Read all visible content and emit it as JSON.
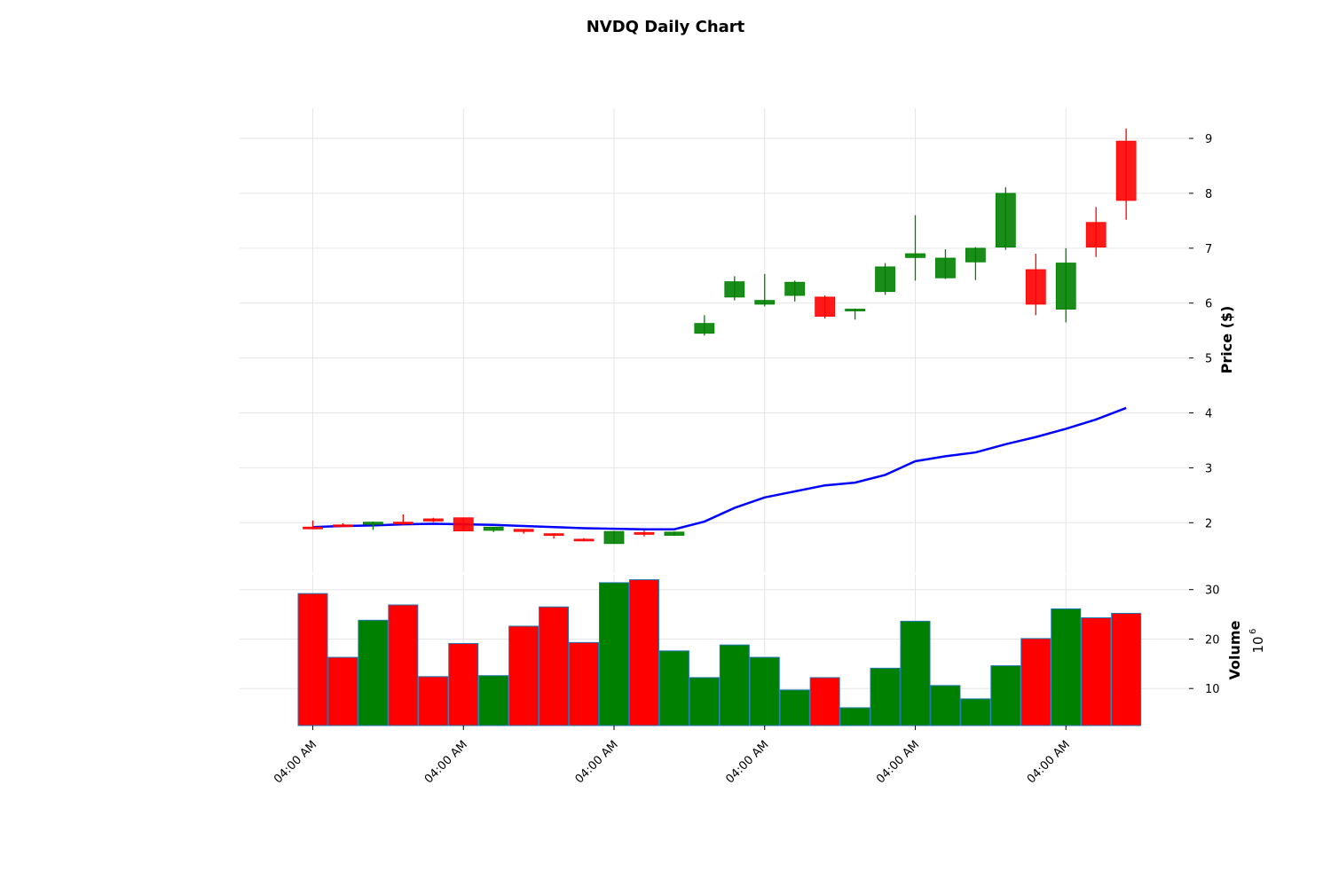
{
  "chart_data": {
    "type": "candlestick",
    "title": "NVDQ Daily Chart",
    "price_ylabel": "Price ($)",
    "volume_ylabel": "Volume",
    "volume_scale_label": "10",
    "volume_scale_exponent": "6",
    "price_ylim": [
      1.1,
      9.55
    ],
    "volume_ylim": [
      2.5,
      33
    ],
    "price_yticks": [
      2,
      3,
      4,
      5,
      6,
      7,
      8,
      9
    ],
    "volume_yticks": [
      10,
      20,
      30
    ],
    "xtick_labels": [
      "04:00 AM",
      "04:00 AM",
      "04:00 AM",
      "04:00 AM",
      "04:00 AM",
      "04:00 AM"
    ],
    "xtick_indices": [
      0,
      5,
      10,
      15,
      20,
      25
    ],
    "grid": true,
    "colors": {
      "up": "#008000",
      "down": "#ff0000",
      "ma": "#0000ff"
    },
    "candles": [
      {
        "open": 1.92,
        "high": 2.04,
        "low": 1.88,
        "close": 1.92,
        "volume": 29.2,
        "dir": "down"
      },
      {
        "open": 1.96,
        "high": 1.99,
        "low": 1.92,
        "close": 1.96,
        "volume": 16.3,
        "dir": "down"
      },
      {
        "open": 1.97,
        "high": 2.02,
        "low": 1.87,
        "close": 2.01,
        "volume": 23.8,
        "dir": "up"
      },
      {
        "open": 2.01,
        "high": 2.15,
        "low": 1.96,
        "close": 1.98,
        "volume": 26.9,
        "dir": "down"
      },
      {
        "open": 2.07,
        "high": 2.09,
        "low": 2.01,
        "close": 2.03,
        "volume": 12.4,
        "dir": "down"
      },
      {
        "open": 2.09,
        "high": 2.09,
        "low": 1.85,
        "close": 1.85,
        "volume": 19.1,
        "dir": "down"
      },
      {
        "open": 1.86,
        "high": 1.92,
        "low": 1.83,
        "close": 1.92,
        "volume": 12.6,
        "dir": "up"
      },
      {
        "open": 1.88,
        "high": 1.88,
        "low": 1.8,
        "close": 1.84,
        "volume": 22.6,
        "dir": "down"
      },
      {
        "open": 1.8,
        "high": 1.81,
        "low": 1.71,
        "close": 1.77,
        "volume": 26.5,
        "dir": "down"
      },
      {
        "open": 1.7,
        "high": 1.72,
        "low": 1.66,
        "close": 1.67,
        "volume": 19.3,
        "dir": "down"
      },
      {
        "open": 1.62,
        "high": 1.85,
        "low": 1.62,
        "close": 1.84,
        "volume": 31.4,
        "dir": "up"
      },
      {
        "open": 1.82,
        "high": 1.86,
        "low": 1.75,
        "close": 1.8,
        "volume": 32.0,
        "dir": "down"
      },
      {
        "open": 1.77,
        "high": 1.84,
        "low": 1.76,
        "close": 1.83,
        "volume": 17.6,
        "dir": "up"
      },
      {
        "open": 5.45,
        "high": 5.78,
        "low": 5.41,
        "close": 5.63,
        "volume": 12.2,
        "dir": "up"
      },
      {
        "open": 6.11,
        "high": 6.49,
        "low": 6.05,
        "close": 6.39,
        "volume": 18.8,
        "dir": "up"
      },
      {
        "open": 5.98,
        "high": 6.53,
        "low": 5.94,
        "close": 6.05,
        "volume": 16.3,
        "dir": "up"
      },
      {
        "open": 6.14,
        "high": 6.41,
        "low": 6.03,
        "close": 6.38,
        "volume": 9.7,
        "dir": "up"
      },
      {
        "open": 6.11,
        "high": 6.14,
        "low": 5.72,
        "close": 5.76,
        "volume": 12.2,
        "dir": "down"
      },
      {
        "open": 5.86,
        "high": 5.9,
        "low": 5.7,
        "close": 5.89,
        "volume": 6.1,
        "dir": "up"
      },
      {
        "open": 6.21,
        "high": 6.73,
        "low": 6.15,
        "close": 6.66,
        "volume": 14.1,
        "dir": "up"
      },
      {
        "open": 6.83,
        "high": 7.6,
        "low": 6.41,
        "close": 6.9,
        "volume": 23.6,
        "dir": "up"
      },
      {
        "open": 6.46,
        "high": 6.98,
        "low": 6.44,
        "close": 6.82,
        "volume": 10.6,
        "dir": "up"
      },
      {
        "open": 6.75,
        "high": 7.02,
        "low": 6.42,
        "close": 7.0,
        "volume": 7.9,
        "dir": "up"
      },
      {
        "open": 7.02,
        "high": 8.11,
        "low": 6.97,
        "close": 8.0,
        "volume": 14.6,
        "dir": "up"
      },
      {
        "open": 6.61,
        "high": 6.9,
        "low": 5.78,
        "close": 5.98,
        "volume": 20.1,
        "dir": "down"
      },
      {
        "open": 5.89,
        "high": 7.0,
        "low": 5.65,
        "close": 6.73,
        "volume": 26.1,
        "dir": "up"
      },
      {
        "open": 7.47,
        "high": 7.75,
        "low": 6.84,
        "close": 7.02,
        "volume": 24.3,
        "dir": "down"
      },
      {
        "open": 8.95,
        "high": 9.18,
        "low": 7.52,
        "close": 7.87,
        "volume": 25.2,
        "dir": "down"
      }
    ],
    "moving_average": [
      1.92,
      1.94,
      1.95,
      1.97,
      1.98,
      1.97,
      1.96,
      1.94,
      1.92,
      1.9,
      1.89,
      1.88,
      1.88,
      2.02,
      2.27,
      2.46,
      2.57,
      2.68,
      2.73,
      2.87,
      3.12,
      3.21,
      3.28,
      3.43,
      3.56,
      3.71,
      3.88,
      4.09
    ]
  }
}
